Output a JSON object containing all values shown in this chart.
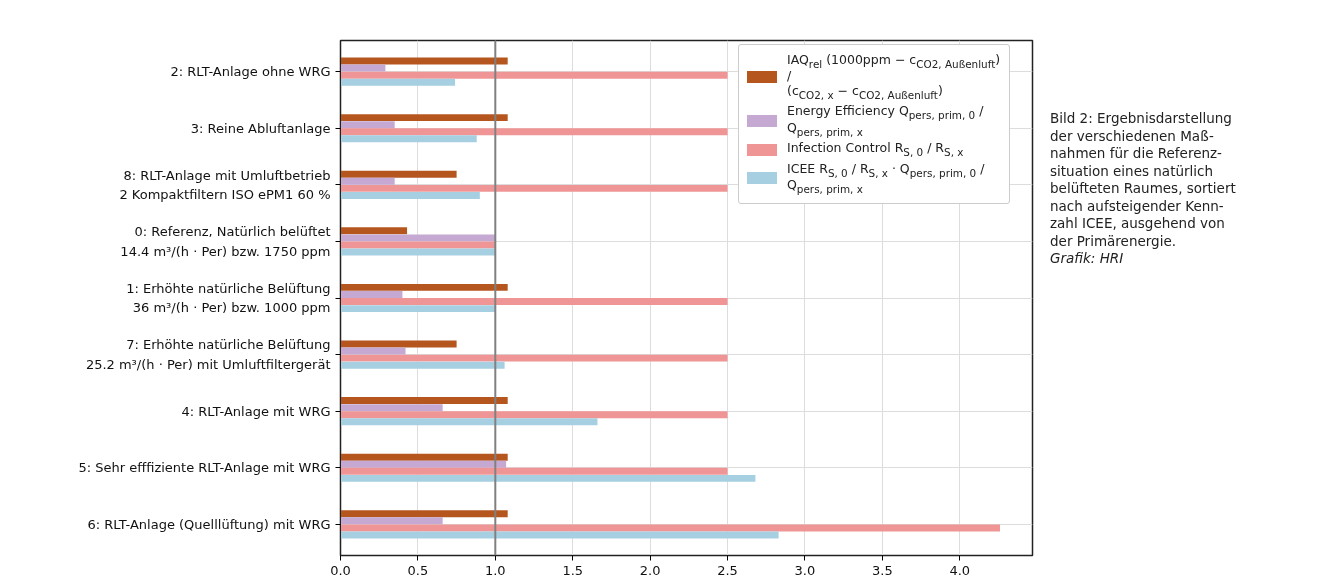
{
  "chart_data": {
    "type": "bar",
    "orientation": "horizontal",
    "categories": [
      "2: RLT-Anlage ohne WRG",
      "3: Reine Abluftanlage",
      "8: RLT-Anlage mit Umluftbetrieb\n2 Kompaktfiltern ISO ePM1 60 %",
      "0: Referenz, Natürlich belüftet\n14.4 m³/(h · Per) bzw. 1750 ppm",
      "1: Erhöhte natürliche Belüftung\n36 m³/(h · Per) bzw. 1000 ppm",
      "7: Erhöhte natürliche Belüftung\n25.2 m³/(h · Per) mit Umluftfiltergerät",
      "4: RLT-Anlage mit WRG",
      "5: Sehr efffiziente RLT-Anlage mit WRG",
      "6: RLT-Anlage (Quelllüftung) mit WRG"
    ],
    "series": [
      {
        "name": "IAQ$_{rel}$ (1000ppm − c$_{CO2, Außenluft}$) /\n(c$_{CO2, x}$ − c$_{CO2, Außenluft}$)",
        "color": "#b5561f",
        "values": [
          1.08,
          1.08,
          0.75,
          0.43,
          1.08,
          0.75,
          1.08,
          1.08,
          1.08
        ]
      },
      {
        "name": "Energy Efficiency Q$_{pers, prim, 0}$ / Q$_{pers, prim, x}$",
        "color": "#c5a9d3",
        "values": [
          0.29,
          0.35,
          0.35,
          1.0,
          0.4,
          0.42,
          0.66,
          1.07,
          0.66
        ]
      },
      {
        "name": "Infection Control R$_{S, 0}$ / R$_{S, x}$",
        "color": "#f09595",
        "values": [
          2.5,
          2.5,
          2.5,
          1.0,
          2.5,
          2.5,
          2.5,
          2.5,
          4.26
        ]
      },
      {
        "name": "ICEE R$_{S, 0}$ / R$_{S, x}$ · Q$_{pers, prim, 0}$ / Q$_{pers, prim, x}$",
        "color": "#a6cfe1",
        "values": [
          0.74,
          0.88,
          0.9,
          1.0,
          1.0,
          1.06,
          1.66,
          2.68,
          2.83
        ]
      }
    ],
    "xlim": [
      0,
      4.47
    ],
    "xticks": [
      {
        "value": 0,
        "label": "0.0"
      },
      0.5,
      {
        "value": 1,
        "label": "1.0"
      },
      1.5,
      {
        "value": 2,
        "label": "2.0"
      },
      2.5,
      {
        "value": 3,
        "label": "3.0"
      },
      3.5,
      {
        "value": 4,
        "label": "4.0"
      }
    ],
    "ref_lines": [
      {
        "axis": "x",
        "value": 1.0,
        "color": "#808080"
      }
    ],
    "grid": true,
    "legend": "top right",
    "annotations": [
      "Bild 2: Ergebnisdarstellung\nder verschiedenen Maß-\nnahmen für die Referenz-\nsituation eines natürlich\nbelüfteten Raumes, sortiert\nnach aufsteigender Kenn-\nzahl ICEE, ausgehend von\nder Primärenergie.",
      "Grafik: HRI"
    ]
  }
}
